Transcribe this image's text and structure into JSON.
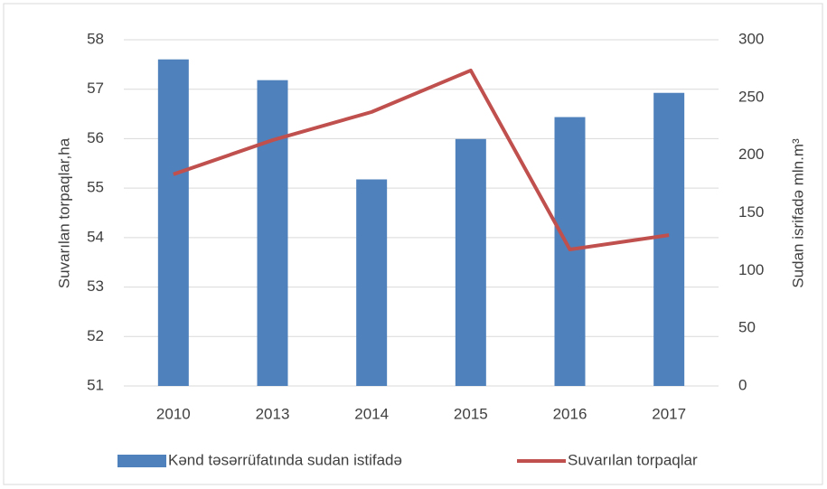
{
  "chart_data": {
    "type": "bar-line",
    "categories": [
      "2010",
      "2013",
      "2014",
      "2015",
      "2016",
      "2017"
    ],
    "series": [
      {
        "name": "Kənd təsərrüfatında sudan istifadə",
        "type": "bar",
        "axis": "y2",
        "color": "#4f81bd",
        "values": [
          283,
          265,
          179,
          214,
          233,
          254
        ]
      },
      {
        "name": "Suvarılan torpaqlar",
        "type": "line",
        "axis": "y",
        "color": "#c0504d",
        "values": [
          55.28,
          55.97,
          56.54,
          57.38,
          53.76,
          54.05
        ]
      }
    ],
    "ylabel": "Suvarılan torpaqlar,ha",
    "y2label": "Sudan isrifadə mln.m³",
    "ylim": [
      51,
      58
    ],
    "yticks": [
      51,
      52,
      53,
      54,
      55,
      56,
      57,
      58
    ],
    "y2lim": [
      0,
      300
    ],
    "y2ticks": [
      0,
      50,
      100,
      150,
      200,
      250,
      300
    ],
    "grid": true,
    "legend": "bottom"
  }
}
